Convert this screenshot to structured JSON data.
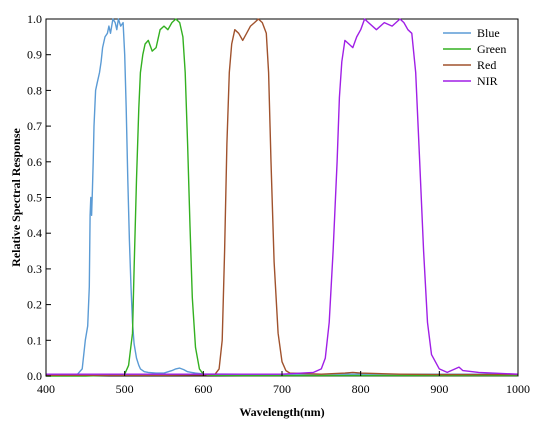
{
  "chart_data": {
    "type": "line",
    "title": "",
    "xlabel": "Wavelength(nm)",
    "ylabel": "Relative Spectral Response",
    "xlim": [
      400,
      1000
    ],
    "ylim": [
      0,
      1.0
    ],
    "x_ticks": [
      400,
      500,
      600,
      700,
      800,
      900,
      1000
    ],
    "y_ticks": [
      0.0,
      0.1,
      0.2,
      0.3,
      0.4,
      0.5,
      0.6,
      0.7,
      0.8,
      0.9,
      1.0
    ],
    "x_tick_labels": [
      "400",
      "500",
      "600",
      "700",
      "800",
      "900",
      "1000"
    ],
    "y_tick_labels": [
      "0.0",
      "0.1",
      "0.2",
      "0.3",
      "0.4",
      "0.5",
      "0.6",
      "0.7",
      "0.8",
      "0.9",
      "1.0"
    ],
    "grid": false,
    "legend_position": "top-right",
    "series": [
      {
        "name": "Blue",
        "color": "#5b9bd5",
        "x": [
          400,
          440,
          446,
          450,
          453,
          455,
          456,
          457,
          458,
          459,
          460,
          461,
          462,
          463,
          465,
          468,
          470,
          472,
          475,
          478,
          480,
          482,
          485,
          488,
          490,
          492,
          495,
          498,
          500,
          502,
          504,
          506,
          508,
          510,
          512,
          515,
          518,
          520,
          525,
          530,
          540,
          550,
          560,
          565,
          570,
          575,
          580,
          585,
          590,
          600,
          650,
          700,
          750,
          800,
          850,
          900,
          950,
          1000
        ],
        "y": [
          0.005,
          0.005,
          0.02,
          0.1,
          0.14,
          0.25,
          0.45,
          0.5,
          0.45,
          0.52,
          0.6,
          0.7,
          0.75,
          0.8,
          0.82,
          0.85,
          0.88,
          0.92,
          0.95,
          0.96,
          0.98,
          0.96,
          1.0,
          0.99,
          0.97,
          1.0,
          0.98,
          0.99,
          0.9,
          0.75,
          0.55,
          0.38,
          0.25,
          0.15,
          0.09,
          0.05,
          0.03,
          0.02,
          0.012,
          0.01,
          0.008,
          0.008,
          0.015,
          0.02,
          0.022,
          0.018,
          0.012,
          0.01,
          0.008,
          0.006,
          0.005,
          0.005,
          0.005,
          0.005,
          0.005,
          0.005,
          0.005,
          0.005
        ]
      },
      {
        "name": "Green",
        "color": "#33b020",
        "x": [
          400,
          450,
          480,
          500,
          505,
          510,
          512,
          515,
          518,
          520,
          523,
          526,
          530,
          535,
          540,
          545,
          550,
          555,
          560,
          565,
          570,
          574,
          577,
          580,
          583,
          586,
          590,
          595,
          600,
          605,
          650,
          700,
          800,
          900,
          1000
        ],
        "y": [
          0,
          0,
          0.002,
          0.005,
          0.03,
          0.12,
          0.3,
          0.55,
          0.75,
          0.85,
          0.9,
          0.93,
          0.94,
          0.91,
          0.92,
          0.97,
          0.98,
          0.97,
          0.99,
          1.0,
          0.99,
          0.95,
          0.85,
          0.65,
          0.42,
          0.22,
          0.08,
          0.02,
          0.005,
          0.002,
          0.001,
          0.001,
          0.001,
          0.001,
          0.001
        ]
      },
      {
        "name": "Red",
        "color": "#a0522d",
        "x": [
          400,
          500,
          550,
          600,
          615,
          620,
          624,
          627,
          630,
          633,
          636,
          640,
          645,
          650,
          655,
          660,
          665,
          670,
          675,
          680,
          683,
          686,
          690,
          695,
          700,
          705,
          710,
          750,
          780,
          790,
          800,
          850,
          900,
          950,
          1000
        ],
        "y": [
          0.002,
          0.002,
          0.002,
          0.003,
          0.005,
          0.02,
          0.1,
          0.35,
          0.65,
          0.85,
          0.93,
          0.97,
          0.96,
          0.94,
          0.96,
          0.98,
          0.99,
          1.0,
          0.99,
          0.96,
          0.85,
          0.6,
          0.32,
          0.12,
          0.04,
          0.015,
          0.008,
          0.005,
          0.008,
          0.01,
          0.008,
          0.005,
          0.004,
          0.004,
          0.004
        ]
      },
      {
        "name": "NIR",
        "color": "#a01fe6",
        "x": [
          400,
          500,
          600,
          700,
          740,
          750,
          755,
          760,
          765,
          770,
          773,
          776,
          780,
          785,
          790,
          795,
          800,
          805,
          810,
          820,
          830,
          840,
          850,
          855,
          860,
          865,
          870,
          875,
          880,
          885,
          890,
          900,
          910,
          920,
          925,
          930,
          950,
          1000
        ],
        "y": [
          0.005,
          0.005,
          0.005,
          0.005,
          0.01,
          0.02,
          0.05,
          0.15,
          0.35,
          0.6,
          0.78,
          0.88,
          0.94,
          0.93,
          0.92,
          0.95,
          0.97,
          1.0,
          0.99,
          0.97,
          0.99,
          0.98,
          1.0,
          0.99,
          0.97,
          0.96,
          0.85,
          0.6,
          0.35,
          0.15,
          0.06,
          0.02,
          0.01,
          0.02,
          0.025,
          0.015,
          0.01,
          0.005
        ]
      }
    ]
  }
}
